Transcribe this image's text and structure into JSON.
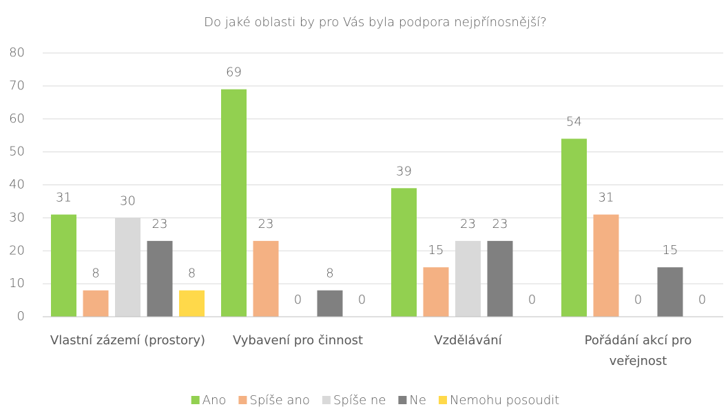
{
  "chart_data": {
    "type": "bar",
    "title": "Do jaké oblasti by pro Vás byla podpora nejpřínosnější?",
    "categories": [
      "Vlastní zázemí (prostory)",
      "Vybavení pro činnost",
      "Vzdělávání",
      "Pořádání akcí pro veřejnost"
    ],
    "series": [
      {
        "name": "Ano",
        "color": "#92d050",
        "values": [
          31,
          69,
          39,
          54
        ]
      },
      {
        "name": "Spíše ano",
        "color": "#f4b183",
        "values": [
          8,
          23,
          15,
          31
        ]
      },
      {
        "name": "Spíše ne",
        "color": "#d9d9d9",
        "values": [
          30,
          0,
          23,
          0
        ]
      },
      {
        "name": "Ne",
        "color": "#808080",
        "values": [
          23,
          8,
          23,
          15
        ]
      },
      {
        "name": "Nemohu posoudit",
        "color": "#ffd94a",
        "values": [
          8,
          0,
          0,
          0
        ]
      }
    ],
    "ylim": [
      0,
      80
    ],
    "yticks": [
      0,
      10,
      20,
      30,
      40,
      50,
      60,
      70,
      80
    ],
    "grid": true,
    "legend": "bottom"
  }
}
